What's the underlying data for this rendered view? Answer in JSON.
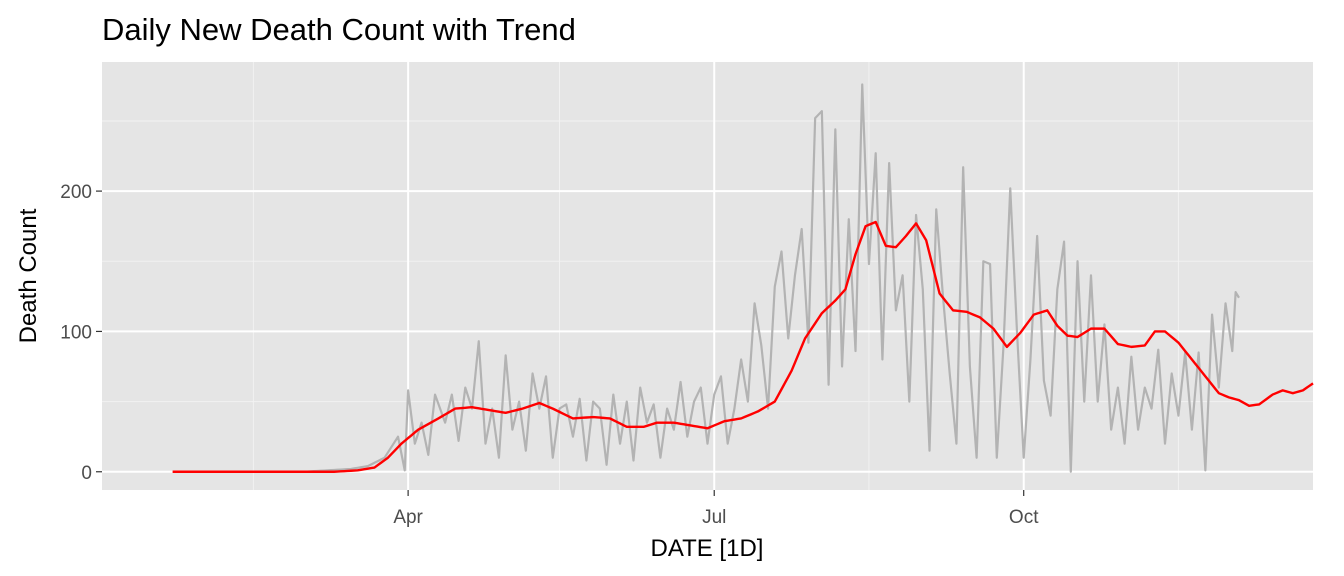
{
  "chart_data": {
    "type": "line",
    "title": "Daily New Death Count with Trend",
    "xlabel": "DATE [1D]",
    "ylabel": "Death Count",
    "x_start": "2020-01-22",
    "x_end": "2020-12-04",
    "xlim": [
      "2020-01-01",
      "2020-12-26"
    ],
    "ylim": [
      -13,
      292
    ],
    "x_ticks": [
      {
        "date": "2020-04-01",
        "label": "Apr"
      },
      {
        "date": "2020-07-01",
        "label": "Jul"
      },
      {
        "date": "2020-10-01",
        "label": "Oct"
      }
    ],
    "x_minor_ticks": [
      "2020-02-15",
      "2020-05-16",
      "2020-08-16",
      "2020-11-16"
    ],
    "y_ticks": [
      0,
      100,
      200
    ],
    "y_minor_ticks": [
      50,
      150,
      250
    ],
    "grid": true,
    "series": [
      {
        "role": "daily",
        "color": "#b3b3b3",
        "keypoints": [
          [
            "2020-01-22",
            0
          ],
          [
            "2020-03-01",
            0
          ],
          [
            "2020-03-08",
            1
          ],
          [
            "2020-03-15",
            2
          ],
          [
            "2020-03-20",
            4
          ],
          [
            "2020-03-25",
            10
          ],
          [
            "2020-03-29",
            25
          ],
          [
            "2020-03-31",
            1
          ],
          [
            "2020-04-01",
            58
          ],
          [
            "2020-04-03",
            20
          ],
          [
            "2020-04-05",
            35
          ],
          [
            "2020-04-07",
            12
          ],
          [
            "2020-04-09",
            55
          ],
          [
            "2020-04-12",
            35
          ],
          [
            "2020-04-14",
            55
          ],
          [
            "2020-04-16",
            22
          ],
          [
            "2020-04-18",
            60
          ],
          [
            "2020-04-20",
            45
          ],
          [
            "2020-04-22",
            93
          ],
          [
            "2020-04-24",
            20
          ],
          [
            "2020-04-26",
            45
          ],
          [
            "2020-04-28",
            10
          ],
          [
            "2020-04-30",
            83
          ],
          [
            "2020-05-02",
            30
          ],
          [
            "2020-05-04",
            50
          ],
          [
            "2020-05-06",
            15
          ],
          [
            "2020-05-08",
            70
          ],
          [
            "2020-05-10",
            45
          ],
          [
            "2020-05-12",
            68
          ],
          [
            "2020-05-14",
            10
          ],
          [
            "2020-05-16",
            45
          ],
          [
            "2020-05-18",
            48
          ],
          [
            "2020-05-20",
            25
          ],
          [
            "2020-05-22",
            52
          ],
          [
            "2020-05-24",
            8
          ],
          [
            "2020-05-26",
            50
          ],
          [
            "2020-05-28",
            45
          ],
          [
            "2020-05-30",
            5
          ],
          [
            "2020-06-01",
            55
          ],
          [
            "2020-06-03",
            20
          ],
          [
            "2020-06-05",
            50
          ],
          [
            "2020-06-07",
            8
          ],
          [
            "2020-06-09",
            60
          ],
          [
            "2020-06-11",
            35
          ],
          [
            "2020-06-13",
            48
          ],
          [
            "2020-06-15",
            10
          ],
          [
            "2020-06-17",
            45
          ],
          [
            "2020-06-19",
            30
          ],
          [
            "2020-06-21",
            64
          ],
          [
            "2020-06-23",
            25
          ],
          [
            "2020-06-25",
            50
          ],
          [
            "2020-06-27",
            60
          ],
          [
            "2020-06-29",
            20
          ],
          [
            "2020-07-01",
            55
          ],
          [
            "2020-07-03",
            68
          ],
          [
            "2020-07-05",
            20
          ],
          [
            "2020-07-07",
            45
          ],
          [
            "2020-07-09",
            80
          ],
          [
            "2020-07-11",
            50
          ],
          [
            "2020-07-13",
            120
          ],
          [
            "2020-07-15",
            90
          ],
          [
            "2020-07-17",
            45
          ],
          [
            "2020-07-19",
            132
          ],
          [
            "2020-07-21",
            157
          ],
          [
            "2020-07-23",
            95
          ],
          [
            "2020-07-25",
            140
          ],
          [
            "2020-07-27",
            173
          ],
          [
            "2020-07-29",
            92
          ],
          [
            "2020-07-31",
            252
          ],
          [
            "2020-08-02",
            257
          ],
          [
            "2020-08-04",
            62
          ],
          [
            "2020-08-06",
            244
          ],
          [
            "2020-08-08",
            75
          ],
          [
            "2020-08-10",
            180
          ],
          [
            "2020-08-12",
            86
          ],
          [
            "2020-08-14",
            276
          ],
          [
            "2020-08-16",
            148
          ],
          [
            "2020-08-18",
            227
          ],
          [
            "2020-08-20",
            80
          ],
          [
            "2020-08-22",
            220
          ],
          [
            "2020-08-24",
            115
          ],
          [
            "2020-08-26",
            140
          ],
          [
            "2020-08-28",
            50
          ],
          [
            "2020-08-30",
            183
          ],
          [
            "2020-09-01",
            130
          ],
          [
            "2020-09-03",
            15
          ],
          [
            "2020-09-05",
            187
          ],
          [
            "2020-09-07",
            125
          ],
          [
            "2020-09-09",
            70
          ],
          [
            "2020-09-11",
            20
          ],
          [
            "2020-09-13",
            217
          ],
          [
            "2020-09-15",
            75
          ],
          [
            "2020-09-17",
            10
          ],
          [
            "2020-09-19",
            150
          ],
          [
            "2020-09-21",
            148
          ],
          [
            "2020-09-23",
            10
          ],
          [
            "2020-09-25",
            90
          ],
          [
            "2020-09-27",
            202
          ],
          [
            "2020-09-29",
            100
          ],
          [
            "2020-10-01",
            10
          ],
          [
            "2020-10-03",
            80
          ],
          [
            "2020-10-05",
            168
          ],
          [
            "2020-10-07",
            65
          ],
          [
            "2020-10-09",
            40
          ],
          [
            "2020-10-11",
            130
          ],
          [
            "2020-10-13",
            164
          ],
          [
            "2020-10-15",
            0
          ],
          [
            "2020-10-17",
            150
          ],
          [
            "2020-10-19",
            50
          ],
          [
            "2020-10-21",
            140
          ],
          [
            "2020-10-23",
            50
          ],
          [
            "2020-10-25",
            105
          ],
          [
            "2020-10-27",
            30
          ],
          [
            "2020-10-29",
            60
          ],
          [
            "2020-10-31",
            20
          ],
          [
            "2020-11-02",
            82
          ],
          [
            "2020-11-04",
            30
          ],
          [
            "2020-11-06",
            60
          ],
          [
            "2020-11-08",
            45
          ],
          [
            "2020-11-10",
            87
          ],
          [
            "2020-11-12",
            20
          ],
          [
            "2020-11-14",
            70
          ],
          [
            "2020-11-16",
            40
          ],
          [
            "2020-11-18",
            85
          ],
          [
            "2020-11-20",
            30
          ],
          [
            "2020-11-22",
            85
          ],
          [
            "2020-11-24",
            1
          ],
          [
            "2020-11-26",
            112
          ],
          [
            "2020-11-28",
            60
          ],
          [
            "2020-11-30",
            120
          ],
          [
            "2020-12-02",
            86
          ],
          [
            "2020-12-03",
            128
          ],
          [
            "2020-12-04",
            124
          ]
        ]
      },
      {
        "role": "trend",
        "color": "#ff0000",
        "keypoints": [
          [
            "2020-01-22",
            0
          ],
          [
            "2020-03-10",
            0
          ],
          [
            "2020-03-17",
            1
          ],
          [
            "2020-03-22",
            3
          ],
          [
            "2020-03-26",
            10
          ],
          [
            "2020-03-30",
            20
          ],
          [
            "2020-04-04",
            30
          ],
          [
            "2020-04-10",
            38
          ],
          [
            "2020-04-15",
            45
          ],
          [
            "2020-04-20",
            46
          ],
          [
            "2020-04-25",
            44
          ],
          [
            "2020-04-30",
            42
          ],
          [
            "2020-05-05",
            45
          ],
          [
            "2020-05-10",
            49
          ],
          [
            "2020-05-14",
            45
          ],
          [
            "2020-05-20",
            38
          ],
          [
            "2020-05-26",
            39
          ],
          [
            "2020-05-31",
            38
          ],
          [
            "2020-06-05",
            32
          ],
          [
            "2020-06-10",
            32
          ],
          [
            "2020-06-14",
            35
          ],
          [
            "2020-06-19",
            35
          ],
          [
            "2020-06-24",
            33
          ],
          [
            "2020-06-29",
            31
          ],
          [
            "2020-07-04",
            36
          ],
          [
            "2020-07-09",
            38
          ],
          [
            "2020-07-14",
            43
          ],
          [
            "2020-07-19",
            50
          ],
          [
            "2020-07-24",
            72
          ],
          [
            "2020-07-28",
            95
          ],
          [
            "2020-08-02",
            113
          ],
          [
            "2020-08-06",
            122
          ],
          [
            "2020-08-09",
            130
          ],
          [
            "2020-08-12",
            155
          ],
          [
            "2020-08-15",
            175
          ],
          [
            "2020-08-18",
            178
          ],
          [
            "2020-08-21",
            161
          ],
          [
            "2020-08-24",
            160
          ],
          [
            "2020-08-27",
            168
          ],
          [
            "2020-08-30",
            177
          ],
          [
            "2020-09-02",
            165
          ],
          [
            "2020-09-06",
            127
          ],
          [
            "2020-09-10",
            115
          ],
          [
            "2020-09-14",
            114
          ],
          [
            "2020-09-18",
            110
          ],
          [
            "2020-09-22",
            102
          ],
          [
            "2020-09-26",
            89
          ],
          [
            "2020-09-30",
            99
          ],
          [
            "2020-10-04",
            112
          ],
          [
            "2020-10-08",
            115
          ],
          [
            "2020-10-11",
            104
          ],
          [
            "2020-10-14",
            97
          ],
          [
            "2020-10-17",
            96
          ],
          [
            "2020-10-21",
            102
          ],
          [
            "2020-10-25",
            102
          ],
          [
            "2020-10-29",
            91
          ],
          [
            "2020-11-02",
            89
          ],
          [
            "2020-11-06",
            90
          ],
          [
            "2020-11-09",
            100
          ],
          [
            "2020-11-12",
            100
          ],
          [
            "2020-11-16",
            92
          ],
          [
            "2020-11-20",
            80
          ],
          [
            "2020-11-24",
            68
          ],
          [
            "2020-11-28",
            56
          ],
          [
            "2020-12-01",
            53
          ],
          [
            "2020-12-04",
            51
          ],
          [
            "2020-12-07",
            47
          ],
          [
            "2020-12-10",
            48
          ],
          [
            "2020-12-14",
            55
          ],
          [
            "2020-12-17",
            58
          ],
          [
            "2020-12-20",
            56
          ],
          [
            "2020-12-23",
            58
          ],
          [
            "2020-12-26",
            63
          ]
        ]
      }
    ]
  }
}
